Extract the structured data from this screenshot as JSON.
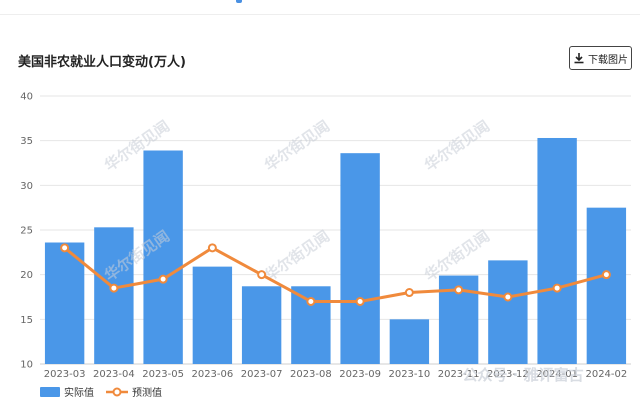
{
  "header": {
    "title": "美国非农就业人口变动(万人)",
    "download_label": "下载图片"
  },
  "watermark": {
    "text": "华尔街见闻",
    "footer_text": "公众号 · 雅评富古"
  },
  "colors": {
    "bar": "#4a97e8",
    "line": "#f08a3c",
    "grid": "#e6e6e6",
    "axis_text": "#666666"
  },
  "chart_data": {
    "type": "bar",
    "title": "美国非农就业人口变动(万人)",
    "categories": [
      "2023-03",
      "2023-04",
      "2023-05",
      "2023-06",
      "2023-07",
      "2023-08",
      "2023-09",
      "2023-10",
      "2023-11",
      "2023-12",
      "2024-01",
      "2024-02"
    ],
    "series": [
      {
        "name": "实际值",
        "type": "bar",
        "values": [
          23.6,
          25.3,
          33.9,
          20.9,
          18.7,
          18.7,
          33.6,
          15.0,
          19.9,
          21.6,
          35.3,
          27.5
        ]
      },
      {
        "name": "预测值",
        "type": "line",
        "values": [
          23.0,
          18.5,
          19.5,
          23.0,
          20.0,
          17.0,
          17.0,
          18.0,
          18.3,
          17.5,
          18.5,
          20.0
        ]
      }
    ],
    "ylim": [
      10,
      40
    ],
    "yticks": [
      10,
      15,
      20,
      25,
      30,
      35,
      40
    ],
    "xlabel": "",
    "ylabel": "",
    "grid": true,
    "legend": "bottom-left"
  }
}
